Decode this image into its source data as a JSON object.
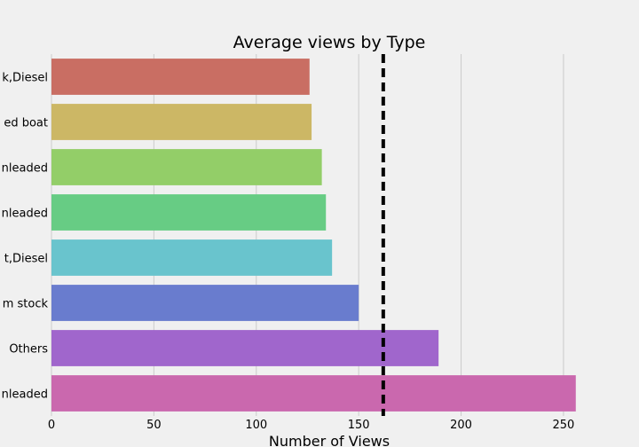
{
  "chart_data": {
    "type": "bar",
    "orientation": "horizontal",
    "title": "Average views by Type",
    "xlabel": "Number of Views",
    "ylabel": "",
    "categories": [
      "k,Diesel",
      "ed boat",
      "nleaded",
      "nleaded",
      "t,Diesel",
      "m stock",
      "Others",
      "nleaded"
    ],
    "values": [
      126,
      127,
      132,
      134,
      137,
      150,
      189,
      256
    ],
    "colors": [
      "#c96e63",
      "#ccb765",
      "#93ce68",
      "#67cc84",
      "#69c4cd",
      "#697cce",
      "#a066cc",
      "#ca68ae"
    ],
    "xlim": [
      0,
      260
    ],
    "xticks": [
      0,
      50,
      100,
      150,
      200,
      250
    ],
    "reference_line": {
      "value": 162,
      "style": "dashed",
      "color": "#000000"
    },
    "grid": true
  }
}
